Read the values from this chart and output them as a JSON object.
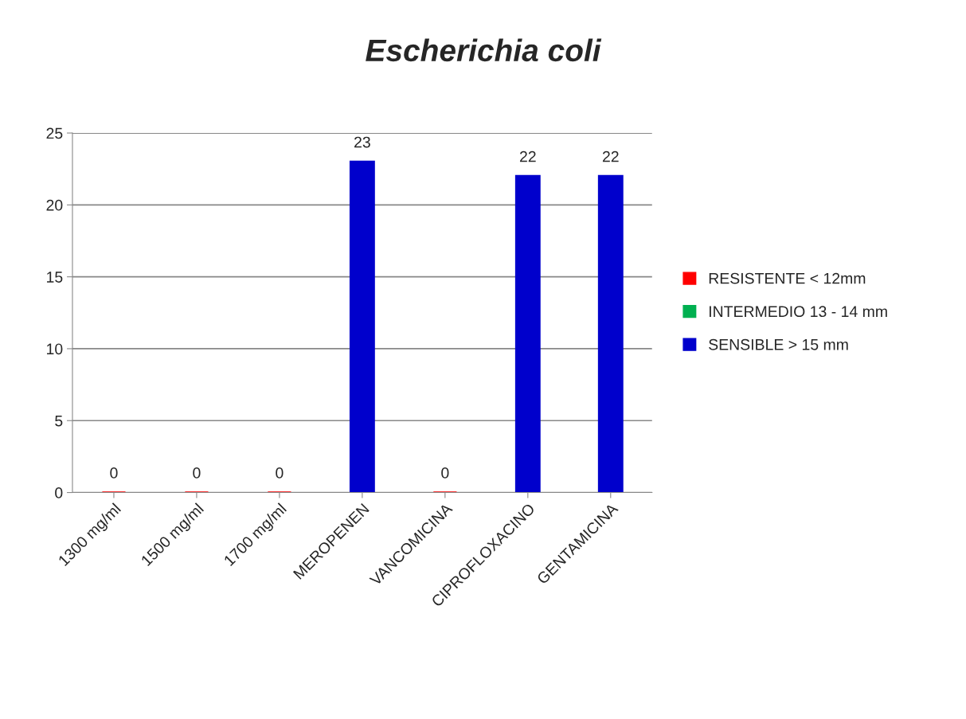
{
  "chart_data": {
    "type": "bar",
    "title": "Escherichia coli",
    "categories": [
      "1300 mg/ml",
      "1500 mg/ml",
      "1700 mg/ml",
      "MEROPENEN",
      "VANCOMICINA",
      "CIPROFLOXACINO",
      "GENTAMICINA"
    ],
    "series": [
      {
        "name": "RESISTENTE < 12mm",
        "color": "#ff0000",
        "values": [
          0,
          0,
          0,
          null,
          0,
          null,
          null
        ]
      },
      {
        "name": "INTERMEDIO 13 - 14 mm",
        "color": "#00b050",
        "values": [
          null,
          null,
          null,
          null,
          null,
          null,
          null
        ]
      },
      {
        "name": "SENSIBLE > 15 mm",
        "color": "#0000cc",
        "values": [
          null,
          null,
          null,
          23,
          null,
          22,
          22
        ]
      }
    ],
    "ylim": [
      0,
      25
    ],
    "yticks": [
      0,
      5,
      10,
      15,
      20,
      25
    ],
    "grid": "y",
    "legend": "right",
    "data_labels": true
  }
}
